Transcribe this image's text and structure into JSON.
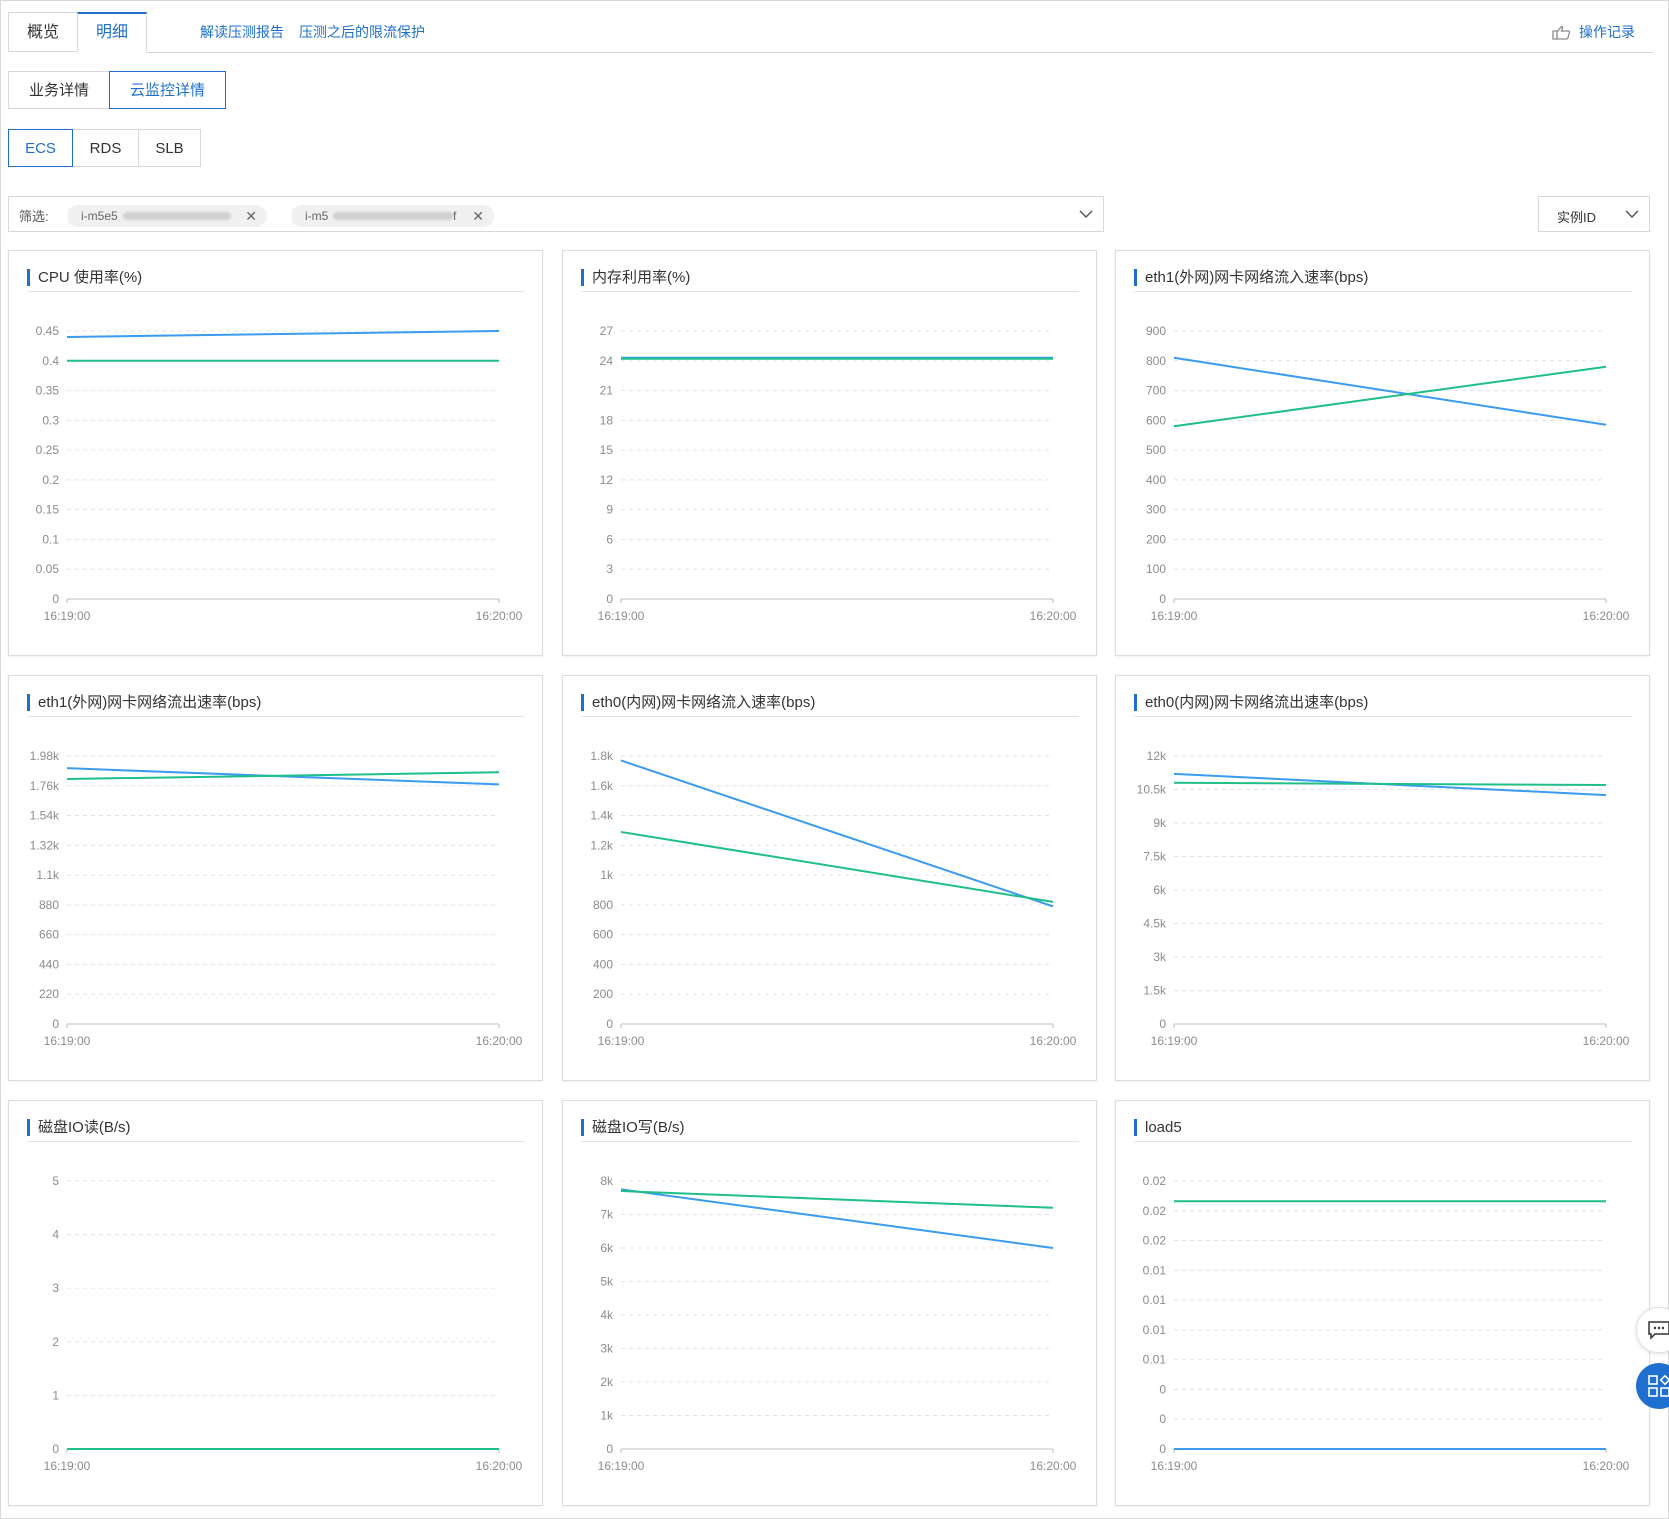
{
  "tabs": [
    {
      "label": "概览",
      "active": false
    },
    {
      "label": "明细",
      "active": true
    }
  ],
  "links": {
    "report": "解读压测报告",
    "protect": "压测之后的限流保护"
  },
  "op_log": {
    "label": "操作记录",
    "icon": "hand-pointer-icon"
  },
  "detail_tabs": [
    {
      "label": "业务详情",
      "active": false
    },
    {
      "label": "云监控详情",
      "active": true
    }
  ],
  "resource_tabs": [
    {
      "label": "ECS",
      "active": true
    },
    {
      "label": "RDS",
      "active": false
    },
    {
      "label": "SLB",
      "active": false
    }
  ],
  "filter": {
    "label": "筛选:",
    "chips": [
      {
        "prefix": "i-m5e5",
        "suffix": ""
      },
      {
        "prefix": "i-m5",
        "suffix": "f"
      }
    ]
  },
  "select": {
    "value": "实例ID"
  },
  "colors": {
    "accent": "#1f6fd1",
    "series_blue": "#3a9bf0",
    "series_green": "#1fbf87"
  },
  "chart_data": [
    {
      "type": "line",
      "title": "CPU 使用率(%)",
      "x": [
        "16:19:00",
        "16:20:00"
      ],
      "yticks": [
        "0",
        "0.05",
        "0.1",
        "0.15",
        "0.2",
        "0.25",
        "0.3",
        "0.35",
        "0.4",
        "0.45"
      ],
      "ylim": [
        0,
        0.45
      ],
      "series": [
        {
          "color": "#3a9bf0",
          "values": [
            0.44,
            0.45
          ]
        },
        {
          "color": "#1fbf87",
          "values": [
            0.4,
            0.4
          ]
        }
      ]
    },
    {
      "type": "line",
      "title": "内存利用率(%)",
      "x": [
        "16:19:00",
        "16:20:00"
      ],
      "yticks": [
        "0",
        "3",
        "6",
        "9",
        "12",
        "15",
        "18",
        "21",
        "24",
        "27"
      ],
      "ylim": [
        0,
        27
      ],
      "series": [
        {
          "color": "#3a9bf0",
          "values": [
            24.3,
            24.3
          ]
        },
        {
          "color": "#1fbf87",
          "values": [
            24.2,
            24.2
          ]
        }
      ]
    },
    {
      "type": "line",
      "title": "eth1(外网)网卡网络流入速率(bps)",
      "x": [
        "16:19:00",
        "16:20:00"
      ],
      "yticks": [
        "0",
        "100",
        "200",
        "300",
        "400",
        "500",
        "600",
        "700",
        "800",
        "900"
      ],
      "ylim": [
        0,
        900
      ],
      "series": [
        {
          "color": "#3a9bf0",
          "values": [
            810,
            585
          ]
        },
        {
          "color": "#1fbf87",
          "values": [
            580,
            780
          ]
        }
      ]
    },
    {
      "type": "line",
      "title": "eth1(外网)网卡网络流出速率(bps)",
      "x": [
        "16:19:00",
        "16:20:00"
      ],
      "yticks": [
        "0",
        "220",
        "440",
        "660",
        "880",
        "1.1k",
        "1.32k",
        "1.54k",
        "1.76k",
        "1.98k"
      ],
      "ylim": [
        0,
        1980
      ],
      "series": [
        {
          "color": "#3a9bf0",
          "values": [
            1890,
            1770
          ]
        },
        {
          "color": "#1fbf87",
          "values": [
            1810,
            1860
          ]
        }
      ]
    },
    {
      "type": "line",
      "title": "eth0(内网)网卡网络流入速率(bps)",
      "x": [
        "16:19:00",
        "16:20:00"
      ],
      "yticks": [
        "0",
        "200",
        "400",
        "600",
        "800",
        "1k",
        "1.2k",
        "1.4k",
        "1.6k",
        "1.8k"
      ],
      "ylim": [
        0,
        1800
      ],
      "series": [
        {
          "color": "#3a9bf0",
          "values": [
            1770,
            790
          ]
        },
        {
          "color": "#1fbf87",
          "values": [
            1290,
            820
          ]
        }
      ]
    },
    {
      "type": "line",
      "title": "eth0(内网)网卡网络流出速率(bps)",
      "x": [
        "16:19:00",
        "16:20:00"
      ],
      "yticks": [
        "0",
        "1.5k",
        "3k",
        "4.5k",
        "6k",
        "7.5k",
        "9k",
        "10.5k",
        "12k"
      ],
      "ylim": [
        0,
        12000
      ],
      "series": [
        {
          "color": "#3a9bf0",
          "values": [
            11200,
            10250
          ]
        },
        {
          "color": "#1fbf87",
          "values": [
            10800,
            10700
          ]
        }
      ]
    },
    {
      "type": "line",
      "title": "磁盘IO读(B/s)",
      "x": [
        "16:19:00",
        "16:20:00"
      ],
      "yticks": [
        "0",
        "1",
        "2",
        "3",
        "4",
        "5"
      ],
      "ylim": [
        0,
        5
      ],
      "series": [
        {
          "color": "#3a9bf0",
          "values": [
            0,
            0
          ]
        },
        {
          "color": "#1fbf87",
          "values": [
            0,
            0
          ]
        }
      ]
    },
    {
      "type": "line",
      "title": "磁盘IO写(B/s)",
      "x": [
        "16:19:00",
        "16:20:00"
      ],
      "yticks": [
        "0",
        "1k",
        "2k",
        "3k",
        "4k",
        "5k",
        "6k",
        "7k",
        "8k"
      ],
      "ylim": [
        0,
        8000
      ],
      "series": [
        {
          "color": "#3a9bf0",
          "values": [
            7750,
            6000
          ]
        },
        {
          "color": "#1fbf87",
          "values": [
            7700,
            7200
          ]
        }
      ]
    },
    {
      "type": "line",
      "title": "load5",
      "x": [
        "16:19:00",
        "16:20:00"
      ],
      "yticks": [
        "0",
        "0",
        "0",
        "0.01",
        "0.01",
        "0.01",
        "0.01",
        "0.02",
        "0.02",
        "0.02"
      ],
      "ylim": [
        0,
        0.0225
      ],
      "series": [
        {
          "color": "#3a9bf0",
          "values": [
            0,
            0
          ]
        },
        {
          "color": "#1fbf87",
          "values": [
            0.0208,
            0.0208
          ]
        }
      ]
    }
  ]
}
